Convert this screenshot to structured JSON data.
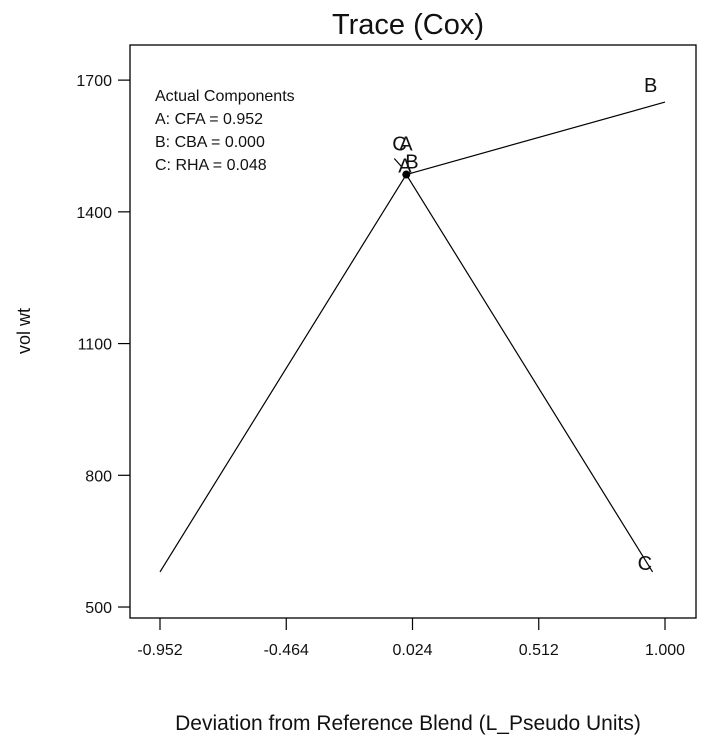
{
  "chart_data": {
    "type": "line",
    "title": "Trace (Cox)",
    "xlabel": "Deviation from Reference Blend (L_Pseudo Units)",
    "ylabel": "vol wt",
    "xlim": [
      -0.952,
      1.0
    ],
    "ylim": [
      475,
      1780
    ],
    "x_ticks": [
      "-0.952",
      "-0.464",
      "0.024",
      "0.512",
      "1.000"
    ],
    "x_tick_values": [
      -0.952,
      -0.464,
      0.024,
      0.512,
      1.0
    ],
    "y_ticks": [
      "500",
      "800",
      "1100",
      "1400",
      "1700"
    ],
    "y_tick_values": [
      500,
      800,
      1100,
      1400,
      1700
    ],
    "grid": false,
    "legend": {
      "title": "Actual Components",
      "entries": [
        "A: CFA = 0.952",
        "B: CBA = 0.000",
        "C: RHA = 0.048"
      ],
      "placement": "top-left"
    },
    "reference_point": {
      "x": 0.0,
      "y": 1485
    },
    "series": [
      {
        "name": "A",
        "x": [
          -0.952,
          0.0
        ],
        "y": [
          580,
          1485
        ],
        "end_label": "A",
        "ref_label": "A"
      },
      {
        "name": "B",
        "x": [
          0.0,
          1.0
        ],
        "y": [
          1485,
          1650
        ],
        "end_label": "B",
        "ref_label": "B"
      },
      {
        "name": "C",
        "x": [
          0.0,
          0.952
        ],
        "y": [
          1485,
          580
        ],
        "end_label": "C",
        "ref_label": "C"
      }
    ]
  }
}
